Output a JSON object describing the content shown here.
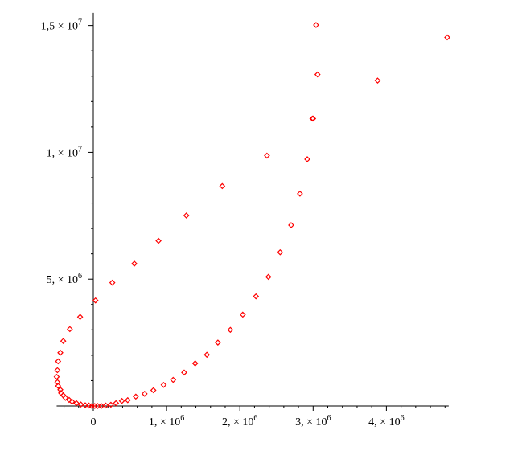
{
  "chart_data": {
    "type": "scatter",
    "title": "",
    "xlabel": "",
    "ylabel": "",
    "xlim": [
      -500000,
      4850000
    ],
    "ylim": [
      -100000,
      15500000
    ],
    "grid": false,
    "legend": "none",
    "point_color": "#ff0000",
    "point_marker": "diamond",
    "x_ticks": [
      {
        "value": 0,
        "label": "0"
      },
      {
        "value": 1000000,
        "label": "1, × 10",
        "exp": "6"
      },
      {
        "value": 2000000,
        "label": "2, × 10",
        "exp": "6"
      },
      {
        "value": 3000000,
        "label": "3, × 10",
        "exp": "6"
      },
      {
        "value": 4000000,
        "label": "4, × 10",
        "exp": "6"
      }
    ],
    "y_ticks": [
      {
        "value": 5000000,
        "label": "5, × 10",
        "exp": "6"
      },
      {
        "value": 10000000,
        "label": "1, × 10",
        "exp": "7"
      },
      {
        "value": 15000000,
        "label": "1,5 × 10",
        "exp": "7"
      }
    ],
    "series": [
      {
        "points": [
          [
            3040000,
            15020000
          ],
          [
            3060000,
            13070000
          ],
          [
            2990000,
            11330000
          ],
          [
            2920000,
            9730000
          ],
          [
            2820000,
            8370000
          ],
          [
            2700000,
            7130000
          ],
          [
            2550000,
            6060000
          ],
          [
            2390000,
            5090000
          ],
          [
            2220000,
            4320000
          ],
          [
            2040000,
            3600000
          ],
          [
            1870000,
            3000000
          ],
          [
            1700000,
            2500000
          ],
          [
            1550000,
            2020000
          ],
          [
            1390000,
            1680000
          ],
          [
            1240000,
            1320000
          ],
          [
            1090000,
            1030000
          ],
          [
            960000,
            830000
          ],
          [
            820000,
            620000
          ],
          [
            700000,
            480000
          ],
          [
            580000,
            370000
          ],
          [
            470000,
            230000
          ],
          [
            390000,
            200000
          ],
          [
            310000,
            110000
          ],
          [
            240000,
            50000
          ],
          [
            170000,
            20000
          ],
          [
            110000,
            0
          ],
          [
            60000,
            0
          ],
          [
            20000,
            0
          ],
          [
            -20000,
            0
          ],
          [
            -60000,
            20000
          ],
          [
            -110000,
            30000
          ],
          [
            -170000,
            60000
          ],
          [
            -230000,
            110000
          ],
          [
            -290000,
            170000
          ],
          [
            -330000,
            240000
          ],
          [
            -380000,
            320000
          ],
          [
            -410000,
            420000
          ],
          [
            -440000,
            510000
          ],
          [
            -450000,
            640000
          ],
          [
            -480000,
            790000
          ],
          [
            -490000,
            940000
          ],
          [
            -500000,
            1150000
          ],
          [
            -490000,
            1410000
          ],
          [
            -480000,
            1760000
          ],
          [
            -450000,
            2100000
          ],
          [
            -410000,
            2560000
          ],
          [
            -320000,
            3030000
          ],
          [
            -180000,
            3510000
          ],
          [
            30000,
            4160000
          ],
          [
            260000,
            4860000
          ],
          [
            560000,
            5610000
          ],
          [
            890000,
            6510000
          ],
          [
            1270000,
            7510000
          ],
          [
            1760000,
            8670000
          ],
          [
            2370000,
            9870000
          ],
          [
            3000000,
            11330000
          ],
          [
            3880000,
            12830000
          ],
          [
            4830000,
            14530000
          ]
        ]
      }
    ]
  }
}
